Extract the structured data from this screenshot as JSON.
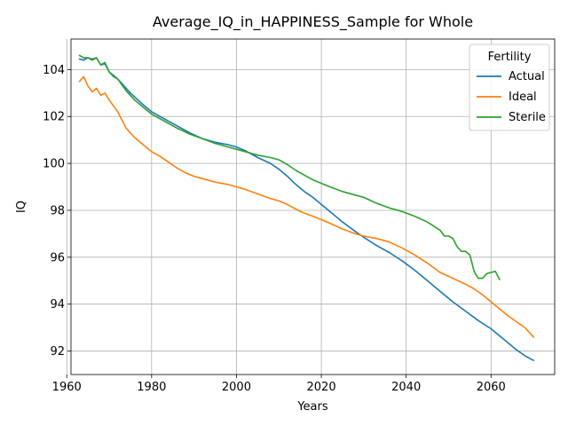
{
  "chart_data": {
    "type": "line",
    "title": "Average_IQ_in_HAPPINESS_Sample for Whole",
    "xlabel": "Years",
    "ylabel": "IQ",
    "xlim": [
      1961,
      2075
    ],
    "ylim": [
      91,
      105.3
    ],
    "xticks": [
      1960,
      1980,
      2000,
      2020,
      2040,
      2060
    ],
    "yticks": [
      92,
      94,
      96,
      98,
      100,
      102,
      104
    ],
    "grid": true,
    "legend": {
      "title": "Fertility",
      "placement": "top-right"
    },
    "series": [
      {
        "name": "Actual",
        "color": "#1f77b4",
        "x": [
          1963,
          1964,
          1965,
          1966,
          1967,
          1968,
          1969,
          1970,
          1972,
          1975,
          1978,
          1980,
          1983,
          1986,
          1989,
          1992,
          1995,
          1998,
          2000,
          2002,
          2005,
          2008,
          2010,
          2012,
          2014,
          2016,
          2018,
          2020,
          2022,
          2025,
          2028,
          2030,
          2033,
          2036,
          2039,
          2042,
          2045,
          2048,
          2051,
          2054,
          2057,
          2060,
          2063,
          2066,
          2068,
          2070
        ],
        "values": [
          104.45,
          104.4,
          104.5,
          104.45,
          104.5,
          104.2,
          104.25,
          103.9,
          103.6,
          103.0,
          102.5,
          102.2,
          101.9,
          101.6,
          101.3,
          101.05,
          100.9,
          100.8,
          100.7,
          100.55,
          100.25,
          100.0,
          99.75,
          99.45,
          99.1,
          98.8,
          98.55,
          98.25,
          97.95,
          97.5,
          97.1,
          96.85,
          96.5,
          96.2,
          95.85,
          95.45,
          95.0,
          94.55,
          94.1,
          93.7,
          93.3,
          92.95,
          92.5,
          92.05,
          91.8,
          91.6
        ]
      },
      {
        "name": "Ideal",
        "color": "#ff7f0e",
        "x": [
          1963,
          1964,
          1965,
          1966,
          1967,
          1968,
          1969,
          1970,
          1972,
          1974,
          1976,
          1978,
          1980,
          1982,
          1984,
          1986,
          1988,
          1990,
          1992,
          1995,
          1998,
          2000,
          2002,
          2005,
          2008,
          2010,
          2012,
          2015,
          2018,
          2020,
          2022,
          2025,
          2028,
          2030,
          2033,
          2036,
          2039,
          2042,
          2045,
          2048,
          2051,
          2054,
          2056,
          2058,
          2060,
          2062,
          2064,
          2066,
          2068,
          2070
        ],
        "values": [
          103.5,
          103.7,
          103.3,
          103.05,
          103.2,
          102.9,
          103.0,
          102.7,
          102.2,
          101.5,
          101.1,
          100.8,
          100.5,
          100.3,
          100.05,
          99.8,
          99.6,
          99.45,
          99.35,
          99.2,
          99.1,
          99.0,
          98.9,
          98.7,
          98.5,
          98.4,
          98.25,
          97.95,
          97.75,
          97.6,
          97.45,
          97.2,
          97.0,
          96.9,
          96.8,
          96.65,
          96.4,
          96.1,
          95.75,
          95.35,
          95.1,
          94.85,
          94.65,
          94.4,
          94.1,
          93.8,
          93.5,
          93.25,
          93.0,
          92.6
        ]
      },
      {
        "name": "Sterile",
        "color": "#2ca02c",
        "x": [
          1963,
          1964,
          1965,
          1966,
          1967,
          1968,
          1969,
          1970,
          1971,
          1972,
          1974,
          1976,
          1978,
          1980,
          1983,
          1986,
          1989,
          1992,
          1995,
          1998,
          2000,
          2002,
          2005,
          2008,
          2010,
          2012,
          2014,
          2016,
          2018,
          2020,
          2022,
          2025,
          2028,
          2030,
          2033,
          2036,
          2039,
          2042,
          2045,
          2048,
          2049,
          2050,
          2051,
          2052,
          2053,
          2054,
          2055,
          2056,
          2057,
          2058,
          2059,
          2060,
          2061,
          2062
        ],
        "values": [
          104.6,
          104.5,
          104.5,
          104.4,
          104.5,
          104.2,
          104.3,
          103.9,
          103.7,
          103.6,
          103.1,
          102.7,
          102.4,
          102.1,
          101.8,
          101.5,
          101.25,
          101.05,
          100.85,
          100.7,
          100.6,
          100.5,
          100.35,
          100.25,
          100.15,
          99.95,
          99.7,
          99.5,
          99.3,
          99.15,
          99.0,
          98.8,
          98.65,
          98.55,
          98.3,
          98.1,
          97.95,
          97.75,
          97.5,
          97.15,
          96.9,
          96.9,
          96.8,
          96.45,
          96.25,
          96.25,
          96.1,
          95.4,
          95.1,
          95.1,
          95.3,
          95.35,
          95.4,
          95.05
        ]
      }
    ]
  }
}
